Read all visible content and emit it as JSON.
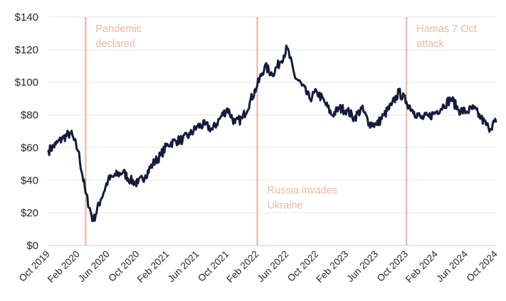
{
  "chart_data": {
    "type": "line",
    "title": "",
    "xlabel": "",
    "ylabel": "",
    "x_start": "2019-10",
    "x_end": "2024-10",
    "ylim": [
      0,
      140
    ],
    "y_ticks": [
      0,
      20,
      40,
      60,
      80,
      100,
      120,
      140
    ],
    "y_tick_labels": [
      "$0",
      "$20",
      "$40",
      "$60",
      "$80",
      "$100",
      "$120",
      "$140"
    ],
    "x_tick_labels": [
      "Oct 2019",
      "Feb 2020",
      "Jun 2020",
      "Oct 2020",
      "Feb 2021",
      "Jun 2021",
      "Oct 2021",
      "Feb 2022",
      "Jun 2022",
      "Oct 2022",
      "Feb 2023",
      "Jun 2023",
      "Oct 2023",
      "Feb 2024",
      "Jun 2024",
      "Oct 2024"
    ],
    "grid": "horizontal",
    "line_color": "#141b3c",
    "annotation_color": "#e9b8a6",
    "annotations": [
      {
        "date": "2020-03",
        "lines": [
          "Pandemic",
          "declared"
        ],
        "label_position": "top"
      },
      {
        "date": "2022-02",
        "lines": [
          "Russia invades",
          "Ukraine"
        ],
        "label_position": "bottom"
      },
      {
        "date": "2023-10",
        "lines": [
          "Hamas 7 Oct",
          "attack"
        ],
        "label_position": "top"
      }
    ],
    "series": [
      {
        "points": [
          [
            "2019-10",
            58
          ],
          [
            "2019-11",
            62
          ],
          [
            "2019-12",
            66
          ],
          [
            "2020-01",
            69
          ],
          [
            "2020-02",
            58
          ],
          [
            "2020-03",
            32
          ],
          [
            "2020-04",
            15
          ],
          [
            "2020-05",
            28
          ],
          [
            "2020-06",
            40
          ],
          [
            "2020-07",
            43
          ],
          [
            "2020-08",
            45
          ],
          [
            "2020-09",
            40
          ],
          [
            "2020-10",
            38
          ],
          [
            "2020-11",
            43
          ],
          [
            "2020-12",
            50
          ],
          [
            "2021-01",
            55
          ],
          [
            "2021-02",
            62
          ],
          [
            "2021-03",
            64
          ],
          [
            "2021-04",
            65
          ],
          [
            "2021-05",
            68
          ],
          [
            "2021-06",
            73
          ],
          [
            "2021-07",
            74
          ],
          [
            "2021-08",
            71
          ],
          [
            "2021-09",
            78
          ],
          [
            "2021-10",
            84
          ],
          [
            "2021-11",
            75
          ],
          [
            "2021-12",
            78
          ],
          [
            "2022-01",
            88
          ],
          [
            "2022-02",
            98
          ],
          [
            "2022-03",
            110
          ],
          [
            "2022-04",
            105
          ],
          [
            "2022-05",
            112
          ],
          [
            "2022-06",
            121
          ],
          [
            "2022-07",
            104
          ],
          [
            "2022-08",
            98
          ],
          [
            "2022-09",
            90
          ],
          [
            "2022-10",
            94
          ],
          [
            "2022-11",
            88
          ],
          [
            "2022-12",
            80
          ],
          [
            "2023-01",
            84
          ],
          [
            "2023-02",
            83
          ],
          [
            "2023-03",
            78
          ],
          [
            "2023-04",
            84
          ],
          [
            "2023-05",
            75
          ],
          [
            "2023-06",
            74
          ],
          [
            "2023-07",
            80
          ],
          [
            "2023-08",
            86
          ],
          [
            "2023-09",
            94
          ],
          [
            "2023-10",
            88
          ],
          [
            "2023-11",
            82
          ],
          [
            "2023-12",
            78
          ],
          [
            "2024-01",
            79
          ],
          [
            "2024-02",
            82
          ],
          [
            "2024-03",
            86
          ],
          [
            "2024-04",
            90
          ],
          [
            "2024-05",
            83
          ],
          [
            "2024-06",
            82
          ],
          [
            "2024-07",
            84
          ],
          [
            "2024-08",
            78
          ],
          [
            "2024-09",
            72
          ],
          [
            "2024-10",
            76
          ]
        ]
      }
    ]
  }
}
